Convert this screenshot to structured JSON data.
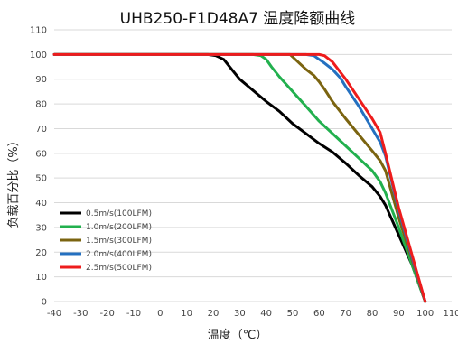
{
  "chart_data": {
    "type": "line",
    "title": "UHB250-F1D48A7 温度降额曲线",
    "xlabel": "温度（℃）",
    "ylabel": "负载百分比（%）",
    "xlim": [
      -40,
      110
    ],
    "ylim": [
      0,
      110
    ],
    "x_ticks": [
      "-40",
      "-30",
      "-20",
      "-10",
      "0",
      "10",
      "20",
      "30",
      "40",
      "50",
      "60",
      "70",
      "80",
      "90",
      "100",
      "110"
    ],
    "y_ticks": [
      "0",
      "10",
      "20",
      "30",
      "40",
      "50",
      "60",
      "70",
      "80",
      "90",
      "100",
      "110"
    ],
    "grid": "horizontal",
    "legend_position": "bottom-left",
    "series": [
      {
        "name": "0.5m/s(100LFM)",
        "color": "#000000",
        "x": [
          -40,
          10,
          18,
          21,
          24,
          27,
          30,
          40,
          45,
          50,
          55,
          60,
          65,
          70,
          75,
          80,
          83,
          85,
          90,
          95,
          100
        ],
        "y": [
          100,
          100,
          100,
          99.5,
          98,
          94,
          90,
          81,
          77,
          72,
          68,
          64,
          60.5,
          56,
          51,
          46.5,
          42.5,
          39,
          27,
          15,
          0
        ]
      },
      {
        "name": "1.0m/s(200LFM)",
        "color": "#22b04e",
        "x": [
          -40,
          30,
          35,
          38,
          40,
          42,
          45,
          50,
          55,
          60,
          65,
          70,
          75,
          80,
          83,
          85,
          90,
          95,
          100
        ],
        "y": [
          100,
          100,
          100,
          99.5,
          98,
          95,
          91,
          85,
          79,
          73,
          68,
          63,
          58,
          53,
          48.5,
          44,
          30,
          15,
          0
        ]
      },
      {
        "name": "1.5m/s(300LFM)",
        "color": "#7b6410",
        "x": [
          -40,
          45,
          49,
          51,
          53,
          55,
          58,
          60,
          62,
          65,
          70,
          75,
          80,
          83,
          85,
          90,
          95,
          100
        ],
        "y": [
          100,
          100,
          100,
          98,
          96,
          94,
          91.5,
          89,
          86,
          81,
          74,
          67.5,
          61,
          57,
          53,
          34,
          17,
          0
        ]
      },
      {
        "name": "2.0m/s(400LFM)",
        "color": "#2470c0",
        "x": [
          -40,
          55,
          58,
          60,
          62,
          65,
          68,
          70,
          75,
          80,
          83,
          85,
          90,
          95,
          100
        ],
        "y": [
          100,
          100,
          99.5,
          98,
          96.5,
          94,
          90.5,
          87,
          79,
          70,
          64.5,
          59,
          37,
          18,
          0
        ]
      },
      {
        "name": "2.5m/s(500LFM)",
        "color": "#ee1c1c",
        "x": [
          -40,
          58,
          60,
          62,
          65,
          70,
          75,
          80,
          83,
          85,
          90,
          95,
          100
        ],
        "y": [
          100,
          100,
          100,
          99.5,
          97,
          90,
          82,
          74,
          68.5,
          60,
          38,
          19,
          0
        ]
      }
    ]
  }
}
